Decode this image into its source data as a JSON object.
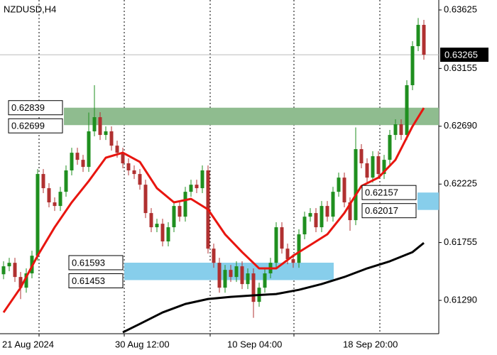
{
  "chart_data": {
    "type": "candlestick",
    "title": "NZDUSD,H4",
    "ylim": [
      0.61022,
      0.63705
    ],
    "yticks": [
      0.63625,
      0.63155,
      {
        "value": 0.6269,
        "label": "0.62690"
      },
      0.62225,
      0.61755,
      {
        "value": 0.6129,
        "label": "0.61290"
      }
    ],
    "x_labels": [
      "21 Aug 2024",
      "30 Aug 12:00",
      "10 Sep 04:00",
      "18 Sep 20:00"
    ],
    "current_price": 0.63265,
    "up_color": "#1f8f1f",
    "down_color": "#b03030",
    "open": [
      0.615,
      0.61564,
      0.61592,
      0.61478,
      0.61392,
      0.61507,
      0.61649,
      0.62306,
      0.62192,
      0.62078,
      0.62049,
      0.62163,
      0.62335,
      0.62477,
      0.6242,
      0.62363,
      0.62649,
      0.62763,
      0.6262,
      0.62649,
      0.62534,
      0.62477,
      0.62392,
      0.62335,
      0.62306,
      0.6222,
      0.61992,
      0.61878,
      0.61906,
      0.61764,
      0.61878,
      0.62049,
      0.61963,
      0.62163,
      0.6222,
      0.62192,
      0.62335,
      0.61706,
      0.61592,
      0.61392,
      0.61535,
      0.61478,
      0.61564,
      0.61421,
      0.61507,
      0.61278,
      0.61392,
      0.61507,
      0.61592,
      0.61878,
      0.61706,
      0.61621,
      0.61592,
      0.61821,
      0.61963,
      0.61992,
      0.61878,
      0.62049,
      0.61963,
      0.62163,
      0.62277,
      0.62078,
      0.61935,
      0.62506,
      0.62392,
      0.62277,
      0.62449,
      0.62306,
      0.6242,
      0.6262,
      0.62706,
      0.6262,
      0.6302,
      0.63334,
      0.63505
    ],
    "high": [
      0.61604,
      0.61632,
      0.61632,
      0.61518,
      0.61547,
      0.61689,
      0.62346,
      0.62346,
      0.62232,
      0.62118,
      0.62203,
      0.62375,
      0.62517,
      0.62517,
      0.6246,
      0.628,
      0.6302,
      0.62803,
      0.62689,
      0.62689,
      0.62574,
      0.62517,
      0.62432,
      0.62375,
      0.62346,
      0.6226,
      0.62032,
      0.61946,
      0.61946,
      0.61918,
      0.62089,
      0.62089,
      0.62203,
      0.6226,
      0.6226,
      0.62375,
      0.62375,
      0.61746,
      0.61632,
      0.61575,
      0.61575,
      0.61604,
      0.61604,
      0.61547,
      0.61547,
      0.61432,
      0.61547,
      0.61632,
      0.61918,
      0.61918,
      0.61746,
      0.61661,
      0.61861,
      0.62003,
      0.62032,
      0.62032,
      0.62089,
      0.62089,
      0.62203,
      0.62317,
      0.62317,
      0.62118,
      0.6268,
      0.62546,
      0.62432,
      0.62489,
      0.62489,
      0.6246,
      0.6266,
      0.62746,
      0.62746,
      0.6306,
      0.63374,
      0.6356,
      0.63545
    ],
    "low": [
      0.6146,
      0.61524,
      0.61438,
      0.613,
      0.61352,
      0.61467,
      0.61609,
      0.62152,
      0.62038,
      0.62009,
      0.62009,
      0.62123,
      0.62295,
      0.6238,
      0.62323,
      0.62323,
      0.62609,
      0.6258,
      0.6258,
      0.62494,
      0.62437,
      0.62352,
      0.62295,
      0.62266,
      0.6218,
      0.61952,
      0.61838,
      0.61838,
      0.61724,
      0.61724,
      0.61838,
      0.61923,
      0.61923,
      0.62123,
      0.62152,
      0.62152,
      0.61666,
      0.61552,
      0.61352,
      0.61352,
      0.61438,
      0.61438,
      0.61381,
      0.61381,
      0.6115,
      0.61238,
      0.61352,
      0.61467,
      0.61552,
      0.61666,
      0.61581,
      0.61552,
      0.61552,
      0.61781,
      0.61923,
      0.61838,
      0.61838,
      0.61923,
      0.61923,
      0.62123,
      0.62038,
      0.6185,
      0.61895,
      0.62352,
      0.62237,
      0.62237,
      0.62266,
      0.62266,
      0.6238,
      0.6258,
      0.6258,
      0.6258,
      0.6298,
      0.63294,
      0.63225
    ],
    "close": [
      0.61564,
      0.61592,
      0.61478,
      0.61392,
      0.61507,
      0.61649,
      0.62306,
      0.62192,
      0.62078,
      0.62049,
      0.62163,
      0.62335,
      0.62477,
      0.6242,
      0.62363,
      0.62649,
      0.62763,
      0.6262,
      0.62649,
      0.62534,
      0.62477,
      0.62392,
      0.62335,
      0.62306,
      0.6222,
      0.61992,
      0.61878,
      0.61906,
      0.61764,
      0.61878,
      0.62049,
      0.61963,
      0.62163,
      0.6222,
      0.62192,
      0.62335,
      0.61706,
      0.61592,
      0.61392,
      0.61535,
      0.61478,
      0.61564,
      0.61421,
      0.61507,
      0.61278,
      0.61392,
      0.61507,
      0.61592,
      0.61878,
      0.61706,
      0.61621,
      0.61592,
      0.61821,
      0.61963,
      0.61992,
      0.61878,
      0.62049,
      0.61963,
      0.62163,
      0.62277,
      0.62078,
      0.61935,
      0.62506,
      0.62392,
      0.62277,
      0.62449,
      0.62306,
      0.6242,
      0.6262,
      0.62706,
      0.6262,
      0.6302,
      0.63334,
      0.63505,
      0.63265
    ],
    "lines": [
      {
        "color": "#e8150f",
        "x": [
          0,
          3,
          6,
          9,
          12,
          15,
          18,
          21,
          24,
          27,
          30,
          33,
          36,
          39,
          42,
          45,
          48,
          51,
          54,
          57,
          60,
          63,
          66,
          69,
          72,
          74
        ],
        "values": [
          0.61193,
          0.61392,
          0.61649,
          0.61878,
          0.62078,
          0.62249,
          0.62437,
          0.62477,
          0.62403,
          0.62192,
          0.62078,
          0.62106,
          0.62021,
          0.61821,
          0.61678,
          0.61547,
          0.61547,
          0.61649,
          0.61735,
          0.61821,
          0.61992,
          0.62209,
          0.62277,
          0.6242,
          0.62689,
          0.62837
        ]
      },
      {
        "color": "#000000",
        "x": [
          21,
          24,
          28,
          32,
          36,
          40,
          44,
          48,
          52,
          56,
          60,
          64,
          68,
          72,
          74
        ],
        "values": [
          0.61033,
          0.61101,
          0.61193,
          0.61261,
          0.61301,
          0.61318,
          0.6133,
          0.61341,
          0.61375,
          0.61421,
          0.61478,
          0.61547,
          0.61604,
          0.61678,
          0.61752
        ]
      }
    ],
    "zones": [
      {
        "top": 0.62839,
        "bottom": 0.62699,
        "color": "#8fbc8f"
      },
      {
        "top": 0.61593,
        "bottom": 0.61453,
        "color": "#87ceeb"
      },
      {
        "top": 0.62157,
        "bottom": 0.62017,
        "color": "#87ceeb"
      }
    ]
  }
}
